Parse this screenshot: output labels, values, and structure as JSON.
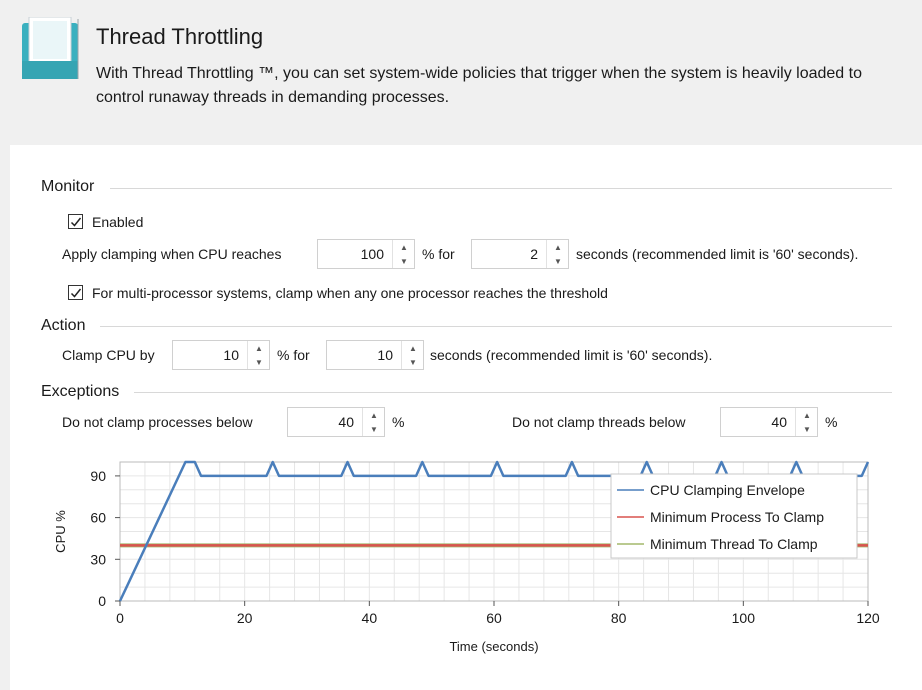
{
  "header": {
    "title": "Thread Throttling",
    "description": "With Thread Throttling ™, you can set system-wide policies that trigger when the system is heavily loaded to control runaway threads in demanding processes."
  },
  "monitor": {
    "title": "Monitor",
    "enabled_label": "Enabled",
    "enabled": true,
    "apply_label": "Apply clamping when CPU reaches",
    "cpu_threshold": "100",
    "pct_for": "% for",
    "seconds_value": "2",
    "seconds_label": "seconds (recommended limit is '60' seconds).",
    "multiproc_label": "For multi-processor systems, clamp when any one processor reaches the threshold",
    "multiproc": true
  },
  "action": {
    "title": "Action",
    "clamp_label": "Clamp CPU by",
    "clamp_value": "10",
    "pct_for": "% for",
    "seconds_value": "10",
    "seconds_label": "seconds (recommended limit is '60' seconds)."
  },
  "exceptions": {
    "title": "Exceptions",
    "processes_label": "Do not clamp processes below",
    "processes_value": "40",
    "processes_unit": "%",
    "threads_label": "Do not clamp threads below",
    "threads_value": "40",
    "threads_unit": "%"
  },
  "chart_data": {
    "type": "line",
    "xlabel": "Time (seconds)",
    "ylabel": "CPU %",
    "xlim": [
      0,
      120
    ],
    "ylim": [
      0,
      100
    ],
    "xticks": [
      0,
      20,
      40,
      60,
      80,
      100,
      120
    ],
    "yticks": [
      0,
      30,
      60,
      90
    ],
    "grid": true,
    "legend_position": "top-right",
    "series": [
      {
        "name": "CPU Clamping Envelope",
        "color": "#4a7ebb",
        "points": [
          [
            0,
            0
          ],
          [
            10.5,
            100
          ],
          [
            12,
            100
          ],
          [
            13,
            90
          ],
          [
            23.5,
            90
          ],
          [
            24.5,
            100
          ],
          [
            25.5,
            90
          ],
          [
            35.5,
            90
          ],
          [
            36.5,
            100
          ],
          [
            37.5,
            90
          ],
          [
            47.5,
            90
          ],
          [
            48.5,
            100
          ],
          [
            49.5,
            90
          ],
          [
            59.5,
            90
          ],
          [
            60.5,
            100
          ],
          [
            61.5,
            90
          ],
          [
            71.5,
            90
          ],
          [
            72.5,
            100
          ],
          [
            73.5,
            90
          ],
          [
            83.5,
            90
          ],
          [
            84.5,
            100
          ],
          [
            85.5,
            90
          ],
          [
            95.5,
            90
          ],
          [
            96.5,
            100
          ],
          [
            97.5,
            90
          ],
          [
            107.5,
            90
          ],
          [
            108.5,
            100
          ],
          [
            109.5,
            90
          ],
          [
            119,
            90
          ],
          [
            120,
            100
          ]
        ]
      },
      {
        "name": "Minimum Process To Clamp",
        "color": "#d9534f",
        "points": [
          [
            0,
            40
          ],
          [
            120,
            40
          ]
        ]
      },
      {
        "name": "Minimum Thread To Clamp",
        "color": "#a3b86c",
        "points": [
          [
            0,
            40
          ],
          [
            120,
            40
          ]
        ]
      }
    ]
  }
}
